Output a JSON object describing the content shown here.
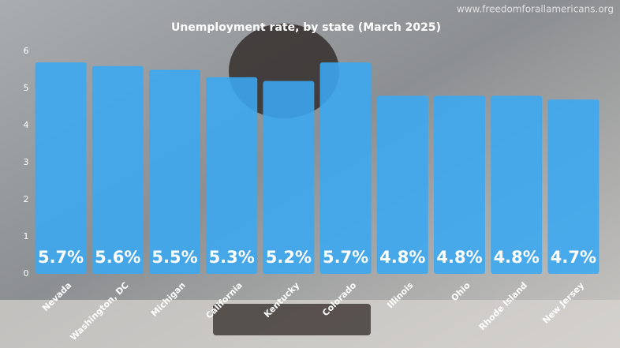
{
  "chart_data": {
    "type": "bar",
    "title": "Unemployment rate, by state (March 2025)",
    "watermark": "www.freedomforallamericans.org",
    "categories": [
      "Nevada",
      "Washington, DC",
      "Michigan",
      "California",
      "Kentucky",
      "Colorado",
      "Illinois",
      "Ohio",
      "Rhode Island",
      "New Jersey"
    ],
    "values": [
      5.7,
      5.6,
      5.5,
      5.3,
      5.2,
      5.7,
      4.8,
      4.8,
      4.8,
      4.7
    ],
    "value_labels": [
      "5.7%",
      "5.6%",
      "5.5%",
      "5.3%",
      "5.2%",
      "5.7%",
      "4.8%",
      "4.8%",
      "4.8%",
      "4.7%"
    ],
    "color": "#3aa8f2",
    "ylim": [
      0,
      6
    ],
    "yticks": [
      0,
      1,
      2,
      3,
      4,
      5,
      6
    ],
    "grid": false
  }
}
